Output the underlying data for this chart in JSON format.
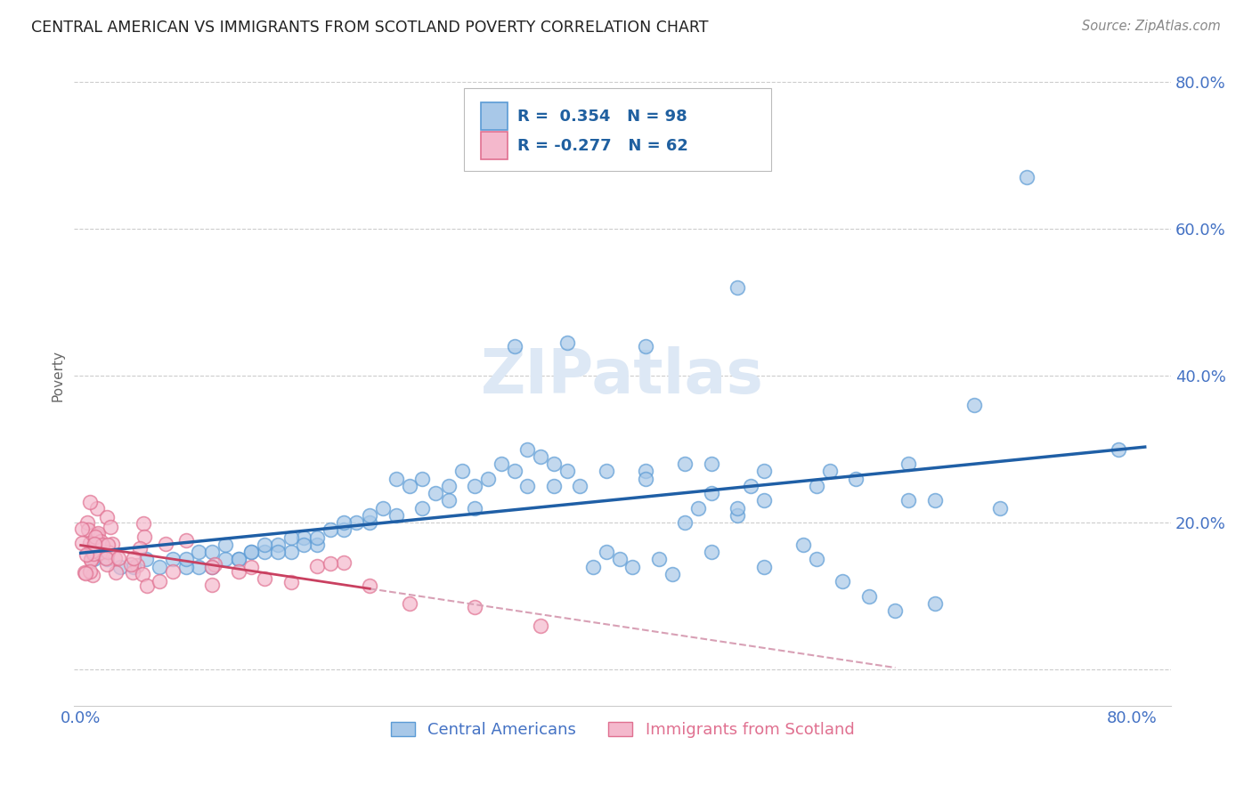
{
  "title": "CENTRAL AMERICAN VS IMMIGRANTS FROM SCOTLAND POVERTY CORRELATION CHART",
  "source": "Source: ZipAtlas.com",
  "ylabel": "Poverty",
  "xlim": [
    -0.005,
    0.83
  ],
  "ylim": [
    -0.05,
    0.85
  ],
  "blue_R": 0.354,
  "blue_N": 98,
  "pink_R": -0.277,
  "pink_N": 62,
  "blue_color": "#a8c8e8",
  "blue_edge_color": "#5b9bd5",
  "pink_color": "#f4b8cc",
  "pink_edge_color": "#e07090",
  "blue_line_color": "#1f5fa6",
  "pink_line_color": "#c94060",
  "pink_dash_color": "#d8a0b5",
  "watermark_color": "#dde8f5",
  "legend_label_blue": "R =  0.354   N = 98",
  "legend_label_pink": "R = -0.277   N = 62",
  "legend_text_color": "#2060a0",
  "axis_label_color": "#4472c4",
  "title_color": "#222222",
  "source_color": "#888888",
  "grid_color": "#cccccc",
  "ylabel_color": "#666666",
  "watermark": "ZIPatlas",
  "y_ticks": [
    0.0,
    0.2,
    0.4,
    0.6,
    0.8
  ],
  "y_tick_labels": [
    "",
    "20.0%",
    "40.0%",
    "60.0%",
    "80.0%"
  ],
  "x_tick_labels_show": [
    "0.0%",
    "80.0%"
  ]
}
